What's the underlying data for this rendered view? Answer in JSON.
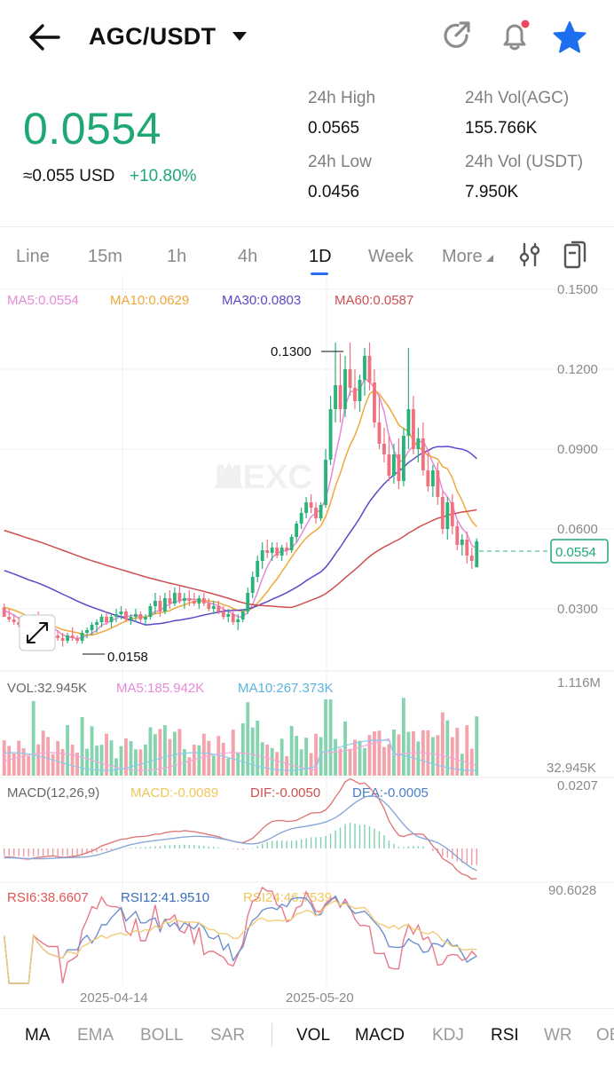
{
  "header": {
    "pair": "AGC/USDT",
    "back_icon": "arrow-left-icon",
    "share_icon": "share-refresh-icon",
    "bell_icon": "bell-icon",
    "star_icon": "star-icon"
  },
  "ticker": {
    "last_price": "0.0554",
    "approx_usd": "≈0.055 USD",
    "change_pct": "+10.80%",
    "high_label": "24h High",
    "high_value": "0.0565",
    "low_label": "24h Low",
    "low_value": "0.0456",
    "vol_base_label": "24h Vol(AGC)",
    "vol_base_value": "155.766K",
    "vol_quote_label": "24h Vol (USDT)",
    "vol_quote_value": "7.950K"
  },
  "intervals": {
    "items": [
      "Line",
      "15m",
      "1h",
      "4h",
      "1D",
      "Week",
      "More"
    ],
    "active": "1D"
  },
  "main_chart": {
    "ma_legend": {
      "ma5": "MA5:0.0554",
      "ma10": "MA10:0.0629",
      "ma30": "MA30:0.0803",
      "ma60": "MA60:0.0587"
    },
    "y_ticks": [
      "0.1500",
      "0.1200",
      "0.0900",
      "0.0600",
      "0.0300"
    ],
    "max_label": "0.1300",
    "min_label": "0.0158",
    "current_price_tag": "0.0554",
    "watermark": "MEXC"
  },
  "volume_panel": {
    "vol": "VOL:32.945K",
    "ma5": "MA5:185.942K",
    "ma10": "MA10:267.373K",
    "top": "1.116M",
    "bottom": "32.945K"
  },
  "macd_panel": {
    "title": "MACD(12,26,9)",
    "macd": "MACD:-0.0089",
    "dif": "DIF:-0.0050",
    "dea": "DEA:-0.0005",
    "top": "0.0207"
  },
  "rsi_panel": {
    "rsi6": "RSI6:38.6607",
    "rsi12": "RSI12:41.9510",
    "rsi24": "RSI24:46.7539",
    "top": "90.6028"
  },
  "x_labels": [
    "2025-04-14",
    "2025-05-20"
  ],
  "indicator_tabs": {
    "main": [
      "MA",
      "EMA",
      "BOLL",
      "SAR"
    ],
    "sub": [
      "VOL",
      "MACD",
      "KDJ",
      "RSI",
      "WR",
      "OBV"
    ],
    "active": [
      "MA",
      "VOL",
      "MACD",
      "RSI"
    ]
  },
  "colors": {
    "up": "#2ab27b",
    "down": "#f0727f",
    "price_green": "#1fa774",
    "ma5": "#e58ad9",
    "ma10": "#f0a83a",
    "ma30": "#5a48c8",
    "ma60": "#cf4f4f",
    "accent": "#2a6df4"
  },
  "chart_data": {
    "type": "candlestick",
    "x_range": [
      "2025-03-08",
      "2025-06-18"
    ],
    "ylim": [
      0.02,
      0.15
    ],
    "candles": [
      [
        0.0305,
        0.032,
        0.027,
        0.027
      ],
      [
        0.027,
        0.03,
        0.025,
        0.026
      ],
      [
        0.026,
        0.028,
        0.024,
        0.025
      ],
      [
        0.025,
        0.027,
        0.023,
        0.024
      ],
      [
        0.024,
        0.026,
        0.022,
        0.023
      ],
      [
        0.023,
        0.025,
        0.021,
        0.022
      ],
      [
        0.022,
        0.028,
        0.021,
        0.027
      ],
      [
        0.027,
        0.029,
        0.024,
        0.025
      ],
      [
        0.025,
        0.027,
        0.022,
        0.023
      ],
      [
        0.023,
        0.025,
        0.02,
        0.021
      ],
      [
        0.021,
        0.023,
        0.019,
        0.02
      ],
      [
        0.02,
        0.022,
        0.018,
        0.019
      ],
      [
        0.019,
        0.021,
        0.0158,
        0.018
      ],
      [
        0.018,
        0.021,
        0.017,
        0.02
      ],
      [
        0.02,
        0.023,
        0.018,
        0.019
      ],
      [
        0.019,
        0.02,
        0.017,
        0.018
      ],
      [
        0.018,
        0.022,
        0.017,
        0.021
      ],
      [
        0.021,
        0.023,
        0.019,
        0.022
      ],
      [
        0.022,
        0.025,
        0.02,
        0.024
      ],
      [
        0.024,
        0.026,
        0.021,
        0.025
      ],
      [
        0.025,
        0.028,
        0.023,
        0.027
      ],
      [
        0.027,
        0.029,
        0.024,
        0.025
      ],
      [
        0.025,
        0.028,
        0.023,
        0.027
      ],
      [
        0.027,
        0.03,
        0.025,
        0.028
      ],
      [
        0.028,
        0.031,
        0.026,
        0.029
      ],
      [
        0.029,
        0.03,
        0.025,
        0.026
      ],
      [
        0.026,
        0.028,
        0.024,
        0.027
      ],
      [
        0.027,
        0.03,
        0.025,
        0.028
      ],
      [
        0.028,
        0.029,
        0.025,
        0.026
      ],
      [
        0.026,
        0.028,
        0.024,
        0.027
      ],
      [
        0.027,
        0.032,
        0.026,
        0.031
      ],
      [
        0.031,
        0.036,
        0.028,
        0.033
      ],
      [
        0.033,
        0.035,
        0.027,
        0.029
      ],
      [
        0.029,
        0.036,
        0.028,
        0.034
      ],
      [
        0.034,
        0.037,
        0.03,
        0.032
      ],
      [
        0.032,
        0.038,
        0.031,
        0.036
      ],
      [
        0.036,
        0.039,
        0.032,
        0.033
      ],
      [
        0.033,
        0.036,
        0.03,
        0.034
      ],
      [
        0.034,
        0.037,
        0.031,
        0.033
      ],
      [
        0.033,
        0.036,
        0.031,
        0.032
      ],
      [
        0.032,
        0.035,
        0.03,
        0.034
      ],
      [
        0.034,
        0.036,
        0.031,
        0.032
      ],
      [
        0.032,
        0.034,
        0.029,
        0.03
      ],
      [
        0.03,
        0.033,
        0.028,
        0.031
      ],
      [
        0.031,
        0.033,
        0.028,
        0.029
      ],
      [
        0.029,
        0.031,
        0.026,
        0.027
      ],
      [
        0.027,
        0.03,
        0.025,
        0.028
      ],
      [
        0.028,
        0.03,
        0.024,
        0.025
      ],
      [
        0.025,
        0.028,
        0.022,
        0.026
      ],
      [
        0.026,
        0.03,
        0.025,
        0.029
      ],
      [
        0.029,
        0.038,
        0.028,
        0.036
      ],
      [
        0.036,
        0.044,
        0.034,
        0.042
      ],
      [
        0.042,
        0.05,
        0.04,
        0.048
      ],
      [
        0.048,
        0.055,
        0.045,
        0.052
      ],
      [
        0.052,
        0.056,
        0.049,
        0.051
      ],
      [
        0.051,
        0.055,
        0.048,
        0.053
      ],
      [
        0.053,
        0.055,
        0.049,
        0.05
      ],
      [
        0.05,
        0.054,
        0.048,
        0.053
      ],
      [
        0.053,
        0.055,
        0.05,
        0.052
      ],
      [
        0.052,
        0.058,
        0.051,
        0.057
      ],
      [
        0.057,
        0.063,
        0.055,
        0.062
      ],
      [
        0.062,
        0.068,
        0.06,
        0.066
      ],
      [
        0.066,
        0.072,
        0.064,
        0.07
      ],
      [
        0.07,
        0.073,
        0.066,
        0.068
      ],
      [
        0.068,
        0.07,
        0.062,
        0.064
      ],
      [
        0.064,
        0.07,
        0.063,
        0.069
      ],
      [
        0.069,
        0.09,
        0.068,
        0.086
      ],
      [
        0.086,
        0.11,
        0.084,
        0.105
      ],
      [
        0.105,
        0.13,
        0.1,
        0.114
      ],
      [
        0.114,
        0.126,
        0.1,
        0.105
      ],
      [
        0.105,
        0.125,
        0.102,
        0.12
      ],
      [
        0.12,
        0.13,
        0.11,
        0.113
      ],
      [
        0.113,
        0.12,
        0.105,
        0.108
      ],
      [
        0.108,
        0.118,
        0.104,
        0.116
      ],
      [
        0.116,
        0.128,
        0.11,
        0.125
      ],
      [
        0.125,
        0.13,
        0.112,
        0.115
      ],
      [
        0.115,
        0.12,
        0.098,
        0.1
      ],
      [
        0.1,
        0.11,
        0.09,
        0.092
      ],
      [
        0.092,
        0.098,
        0.085,
        0.088
      ],
      [
        0.088,
        0.095,
        0.078,
        0.08
      ],
      [
        0.08,
        0.092,
        0.077,
        0.088
      ],
      [
        0.088,
        0.094,
        0.075,
        0.078
      ],
      [
        0.078,
        0.098,
        0.076,
        0.095
      ],
      [
        0.095,
        0.128,
        0.09,
        0.105
      ],
      [
        0.105,
        0.11,
        0.088,
        0.09
      ],
      [
        0.09,
        0.098,
        0.085,
        0.094
      ],
      [
        0.094,
        0.1,
        0.08,
        0.082
      ],
      [
        0.082,
        0.09,
        0.074,
        0.076
      ],
      [
        0.076,
        0.084,
        0.072,
        0.082
      ],
      [
        0.082,
        0.085,
        0.069,
        0.072
      ],
      [
        0.072,
        0.074,
        0.058,
        0.06
      ],
      [
        0.06,
        0.072,
        0.056,
        0.07
      ],
      [
        0.07,
        0.073,
        0.058,
        0.061
      ],
      [
        0.061,
        0.063,
        0.052,
        0.054
      ],
      [
        0.054,
        0.058,
        0.05,
        0.056
      ],
      [
        0.056,
        0.059,
        0.047,
        0.05
      ],
      [
        0.05,
        0.053,
        0.045,
        0.048
      ],
      [
        0.0456,
        0.0565,
        0.0456,
        0.0554
      ]
    ],
    "series": [
      {
        "name": "MA5",
        "value": 0.0554
      },
      {
        "name": "MA10",
        "value": 0.0629
      },
      {
        "name": "MA30",
        "value": 0.0803
      },
      {
        "name": "MA60",
        "value": 0.0587
      }
    ]
  }
}
